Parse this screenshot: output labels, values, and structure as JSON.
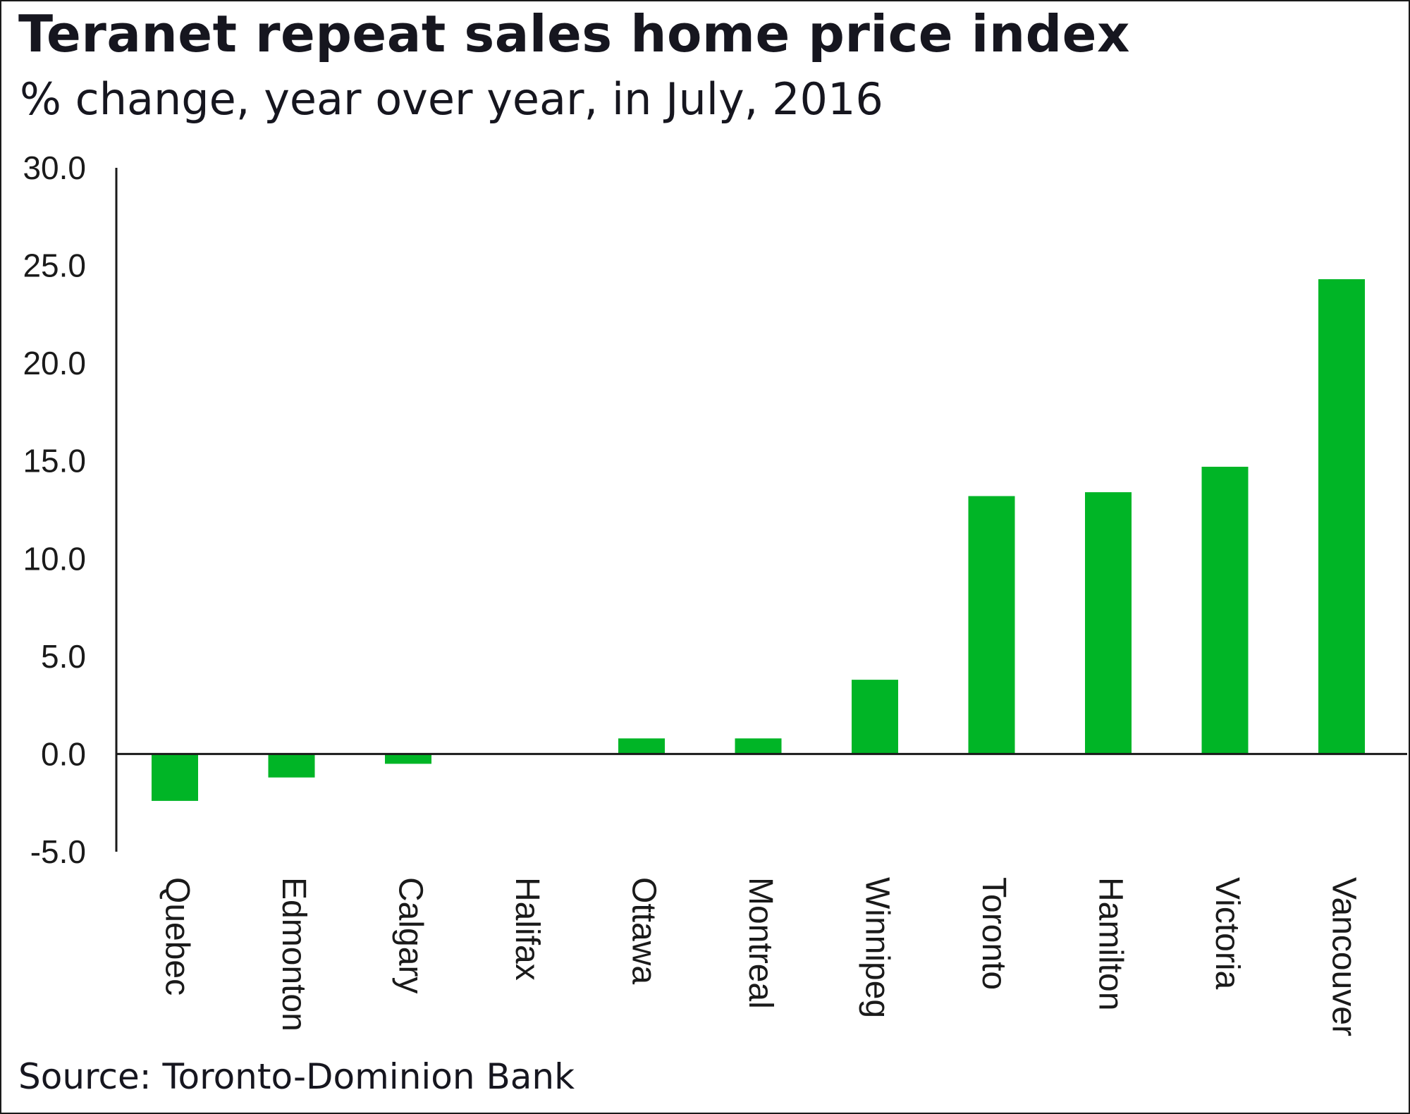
{
  "header": {
    "title": "Teranet repeat sales home price index",
    "subtitle": "% change, year over year, in July, 2016"
  },
  "footer": {
    "source": "Source: Toronto-Dominion Bank"
  },
  "colors": {
    "bar": "#00b526",
    "axis": "#1a1a1a",
    "text": "#16161f"
  },
  "chart_data": {
    "type": "bar",
    "title": "Teranet repeat sales home price index",
    "subtitle": "% change, year over year, in July, 2016",
    "xlabel": "",
    "ylabel": "",
    "ylim": [
      -5,
      30
    ],
    "y_ticks": [
      "30.0",
      "25.0",
      "20.0",
      "15.0",
      "10.0",
      "5.0",
      "0.0",
      "-5.0"
    ],
    "y_tick_values": [
      30,
      25,
      20,
      15,
      10,
      5,
      0,
      -5
    ],
    "grid": false,
    "legend": "none",
    "categories": [
      "Quebec",
      "Edmonton",
      "Calgary",
      "Halifax",
      "Ottawa",
      "Montreal",
      "Winnipeg",
      "Toronto",
      "Hamilton",
      "Victoria",
      "Vancouver"
    ],
    "values": [
      -2.4,
      -1.2,
      -0.5,
      0.0,
      0.8,
      0.8,
      3.8,
      13.2,
      13.4,
      14.7,
      24.3
    ]
  }
}
